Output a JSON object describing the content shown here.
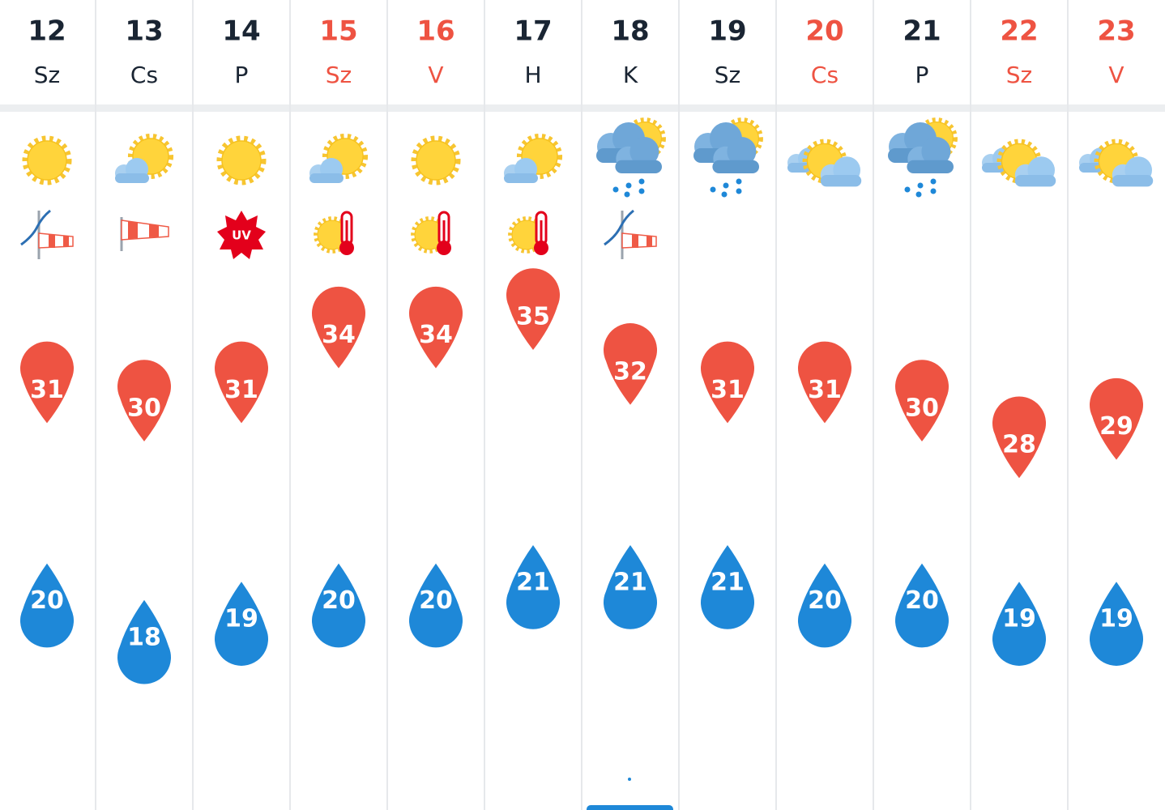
{
  "days": [
    {
      "date": 12,
      "weekday": "Sz",
      "highlight": false,
      "max": 31,
      "min": 20
    },
    {
      "date": 13,
      "weekday": "Cs",
      "highlight": false,
      "max": 30,
      "min": 18
    },
    {
      "date": 14,
      "weekday": "P",
      "highlight": false,
      "max": 31,
      "min": 19
    },
    {
      "date": 15,
      "weekday": "Sz",
      "highlight": true,
      "max": 34,
      "min": 20
    },
    {
      "date": 16,
      "weekday": "V",
      "highlight": true,
      "max": 34,
      "min": 20
    },
    {
      "date": 17,
      "weekday": "H",
      "highlight": false,
      "max": 35,
      "min": 21
    },
    {
      "date": 18,
      "weekday": "K",
      "highlight": false,
      "max": 32,
      "min": 21
    },
    {
      "date": 19,
      "weekday": "Sz",
      "highlight": false,
      "max": 31,
      "min": 21
    },
    {
      "date": 20,
      "weekday": "Cs",
      "highlight": true,
      "max": 31,
      "min": 20
    },
    {
      "date": 21,
      "weekday": "P",
      "highlight": false,
      "max": 30,
      "min": 20
    },
    {
      "date": 22,
      "weekday": "Sz",
      "highlight": true,
      "max": 28,
      "min": 19
    },
    {
      "date": 23,
      "weekday": "V",
      "highlight": true,
      "max": 29,
      "min": 19
    }
  ],
  "uv_badge": "UV"
}
